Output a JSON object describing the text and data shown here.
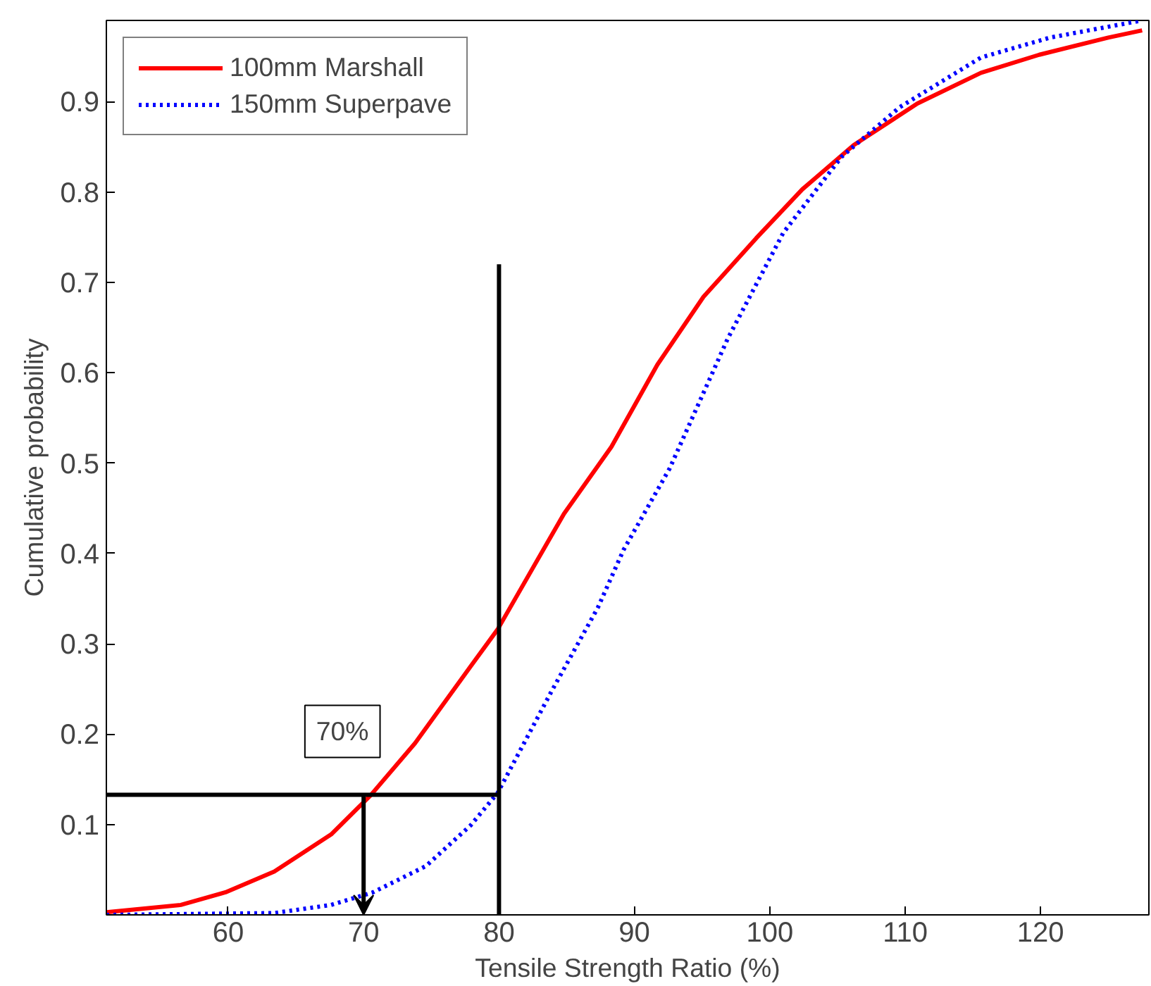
{
  "chart_data": {
    "type": "line",
    "xlabel": "Tensile Strength Ratio (%)",
    "ylabel": "Cumulative probability",
    "xlim": [
      51,
      128
    ],
    "ylim": [
      0,
      0.99
    ],
    "xticks": [
      60,
      70,
      80,
      90,
      100,
      110,
      120
    ],
    "yticks": [
      0.1,
      0.2,
      0.3,
      0.4,
      0.5,
      0.6,
      0.7,
      0.8,
      0.9
    ],
    "grid": false,
    "legend": "top left",
    "series": [
      {
        "name": "100mm Marshall",
        "color": "#ff0000",
        "line_style": "solid",
        "x": [
          51,
          56.5,
          59.8,
          63.4,
          67.6,
          70.5,
          73.8,
          77.9,
          79.9,
          84.8,
          88.3,
          91.7,
          95.1,
          99.0,
          102.4,
          106.2,
          110.9,
          115.6,
          119.9,
          125.0,
          127.5
        ],
        "values": [
          0.003,
          0.011,
          0.025,
          0.048,
          0.089,
          0.132,
          0.19,
          0.275,
          0.316,
          0.444,
          0.518,
          0.609,
          0.684,
          0.749,
          0.803,
          0.852,
          0.898,
          0.932,
          0.952,
          0.971,
          0.979
        ]
      },
      {
        "name": "150mm Superpave",
        "color": "#0000ff",
        "line_style": "dotted",
        "x": [
          51,
          63.4,
          67.6,
          70.7,
          74.6,
          77.9,
          79.9,
          83.9,
          87.3,
          89.2,
          92.6,
          96.9,
          101.0,
          105.3,
          109.6,
          115.6,
          120.7,
          127.5
        ],
        "values": [
          0,
          0.002,
          0.011,
          0.025,
          0.054,
          0.099,
          0.135,
          0.248,
          0.34,
          0.404,
          0.494,
          0.638,
          0.755,
          0.839,
          0.894,
          0.949,
          0.971,
          0.99
        ]
      },
      {
        "color": "#000000",
        "line_style": "solid",
        "x": [
          51,
          80
        ],
        "values": [
          0.133,
          0.133
        ]
      },
      {
        "color": "#000000",
        "line_style": "solid",
        "x": [
          80,
          80
        ],
        "values": [
          0,
          0.72
        ]
      }
    ],
    "annotations": [
      {
        "text": "70%",
        "x": 70,
        "y": 0.133
      }
    ]
  }
}
